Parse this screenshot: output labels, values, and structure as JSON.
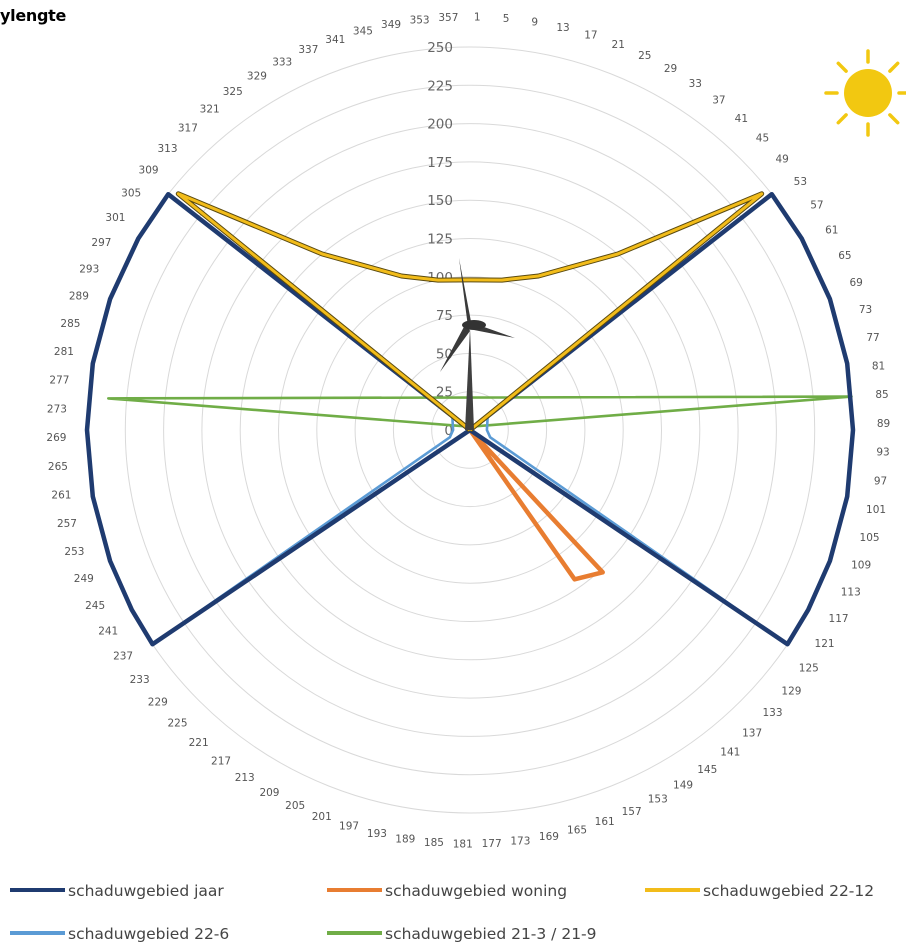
{
  "chart_data": {
    "type": "radar",
    "title": "",
    "angle_unit": "degrees",
    "angular_categories": [
      1,
      5,
      9,
      13,
      17,
      21,
      25,
      29,
      33,
      37,
      41,
      45,
      49,
      53,
      57,
      61,
      65,
      69,
      73,
      77,
      81,
      85,
      89,
      93,
      97,
      101,
      105,
      109,
      113,
      117,
      121,
      125,
      129,
      133,
      137,
      141,
      145,
      149,
      153,
      157,
      161,
      165,
      169,
      173,
      177,
      181,
      185,
      189,
      193,
      197,
      201,
      205,
      209,
      213,
      217,
      221,
      225,
      229,
      233,
      237,
      241,
      245,
      249,
      253,
      257,
      261,
      265,
      269,
      273,
      277,
      281,
      285,
      289,
      293,
      297,
      301,
      305,
      309,
      313,
      317,
      321,
      325,
      329,
      333,
      337,
      341,
      345,
      349,
      353,
      357
    ],
    "radial_ticks": [
      0,
      25,
      50,
      75,
      100,
      125,
      150,
      175,
      200,
      225,
      250
    ],
    "rlim": [
      0,
      250
    ],
    "grid": true,
    "legend_position": "bottom",
    "series": [
      {
        "name": "schaduwgebied jaar",
        "color": "#1f3b70",
        "points": [
          [
            0,
            0
          ],
          [
            52,
            250
          ],
          [
            60,
            250
          ],
          [
            70,
            250
          ],
          [
            80,
            250
          ],
          [
            90,
            250
          ],
          [
            100,
            250
          ],
          [
            110,
            250
          ],
          [
            118,
            250
          ],
          [
            124,
            250
          ],
          [
            124,
            0
          ],
          [
            236,
            0
          ],
          [
            236,
            250
          ],
          [
            242,
            250
          ],
          [
            250,
            250
          ],
          [
            260,
            250
          ],
          [
            270,
            250
          ],
          [
            280,
            250
          ],
          [
            290,
            250
          ],
          [
            300,
            250
          ],
          [
            308,
            250
          ],
          [
            308,
            0
          ]
        ]
      },
      {
        "name": "schaduwgebied woning",
        "color": "#e87d31",
        "points": [
          [
            0,
            0
          ],
          [
            137,
            127
          ],
          [
            145,
            119
          ],
          [
            0,
            0
          ]
        ]
      },
      {
        "name": "schaduwgebied 22-12",
        "color": "#f2bc1a",
        "points": [
          [
            0,
            0
          ],
          [
            51,
            245
          ],
          [
            40,
            150
          ],
          [
            24,
            110
          ],
          [
            12,
            100
          ],
          [
            0,
            98
          ],
          [
            -12,
            100
          ],
          [
            -24,
            110
          ],
          [
            -40,
            150
          ],
          [
            -51,
            245
          ],
          [
            0,
            0
          ]
        ]
      },
      {
        "name": "schaduwgebied 22-6",
        "color": "#5b9bd5",
        "points": [
          [
            0,
            0
          ],
          [
            55,
            14
          ],
          [
            70,
            12
          ],
          [
            90,
            11
          ],
          [
            110,
            14
          ],
          [
            124,
            250
          ],
          [
            124,
            0
          ],
          [
            236,
            0
          ],
          [
            236,
            250
          ],
          [
            250,
            14
          ],
          [
            270,
            11
          ],
          [
            290,
            12
          ],
          [
            305,
            14
          ],
          [
            0,
            0
          ]
        ]
      },
      {
        "name": "schaduwgebied 21-3 / 21-9",
        "color": "#70ad47",
        "points": [
          [
            0,
            0
          ],
          [
            60,
            5
          ],
          [
            85,
            250
          ],
          [
            275,
            237
          ],
          [
            300,
            5
          ],
          [
            0,
            0
          ]
        ]
      }
    ]
  },
  "title_text": "ylengte"
}
